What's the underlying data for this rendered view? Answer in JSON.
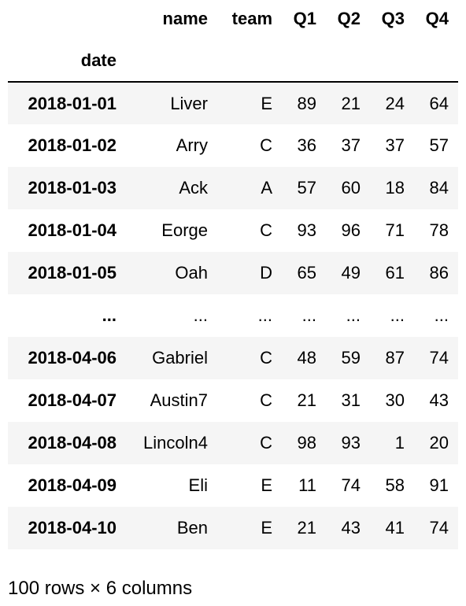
{
  "table": {
    "column_headers": [
      "name",
      "team",
      "Q1",
      "Q2",
      "Q3",
      "Q4"
    ],
    "index_name": "date",
    "rows": [
      {
        "index": "2018-01-01",
        "cells": [
          "Liver",
          "E",
          "89",
          "21",
          "24",
          "64"
        ]
      },
      {
        "index": "2018-01-02",
        "cells": [
          "Arry",
          "C",
          "36",
          "37",
          "37",
          "57"
        ]
      },
      {
        "index": "2018-01-03",
        "cells": [
          "Ack",
          "A",
          "57",
          "60",
          "18",
          "84"
        ]
      },
      {
        "index": "2018-01-04",
        "cells": [
          "Eorge",
          "C",
          "93",
          "96",
          "71",
          "78"
        ]
      },
      {
        "index": "2018-01-05",
        "cells": [
          "Oah",
          "D",
          "65",
          "49",
          "61",
          "86"
        ]
      },
      {
        "index": "...",
        "cells": [
          "...",
          "...",
          "...",
          "...",
          "...",
          "..."
        ]
      },
      {
        "index": "2018-04-06",
        "cells": [
          "Gabriel",
          "C",
          "48",
          "59",
          "87",
          "74"
        ]
      },
      {
        "index": "2018-04-07",
        "cells": [
          "Austin7",
          "C",
          "21",
          "31",
          "30",
          "43"
        ]
      },
      {
        "index": "2018-04-08",
        "cells": [
          "Lincoln4",
          "C",
          "98",
          "93",
          "1",
          "20"
        ]
      },
      {
        "index": "2018-04-09",
        "cells": [
          "Eli",
          "E",
          "11",
          "74",
          "58",
          "91"
        ]
      },
      {
        "index": "2018-04-10",
        "cells": [
          "Ben",
          "E",
          "21",
          "43",
          "41",
          "74"
        ]
      }
    ]
  },
  "footer": {
    "summary": "100 rows × 6 columns"
  }
}
